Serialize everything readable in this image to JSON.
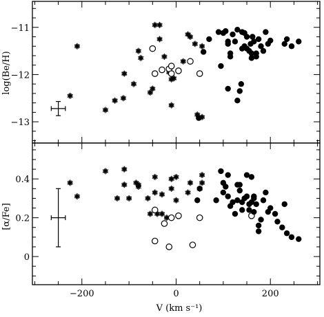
{
  "chart_data": [
    {
      "type": "scatter",
      "xlabel": "V (km s⁻¹)",
      "ylabel": "log(Be/H)",
      "xlim": [
        -305,
        305
      ],
      "ylim": [
        -13.45,
        -10.45
      ],
      "xticks": [
        -200,
        0,
        200
      ],
      "yticks": [
        -13,
        -12,
        -11
      ],
      "ytick_labels": [
        "−13",
        "−12",
        "−11"
      ],
      "series": [
        {
          "marker": "asterisk",
          "points": [
            [
              -210,
              -11.4
            ],
            [
              -225,
              -12.45
            ],
            [
              -150,
              -12.75
            ],
            [
              -130,
              -12.55
            ],
            [
              -112,
              -12.5
            ],
            [
              -110,
              -11.98
            ],
            [
              -90,
              -12.2
            ],
            [
              -80,
              -11.5
            ],
            [
              -75,
              -11.65
            ],
            [
              -55,
              -12.38
            ],
            [
              -50,
              -12.3
            ],
            [
              -45,
              -10.95
            ],
            [
              -35,
              -10.95
            ],
            [
              -35,
              -11.25
            ],
            [
              -25,
              -11.62
            ],
            [
              -15,
              -11.95
            ],
            [
              -10,
              -12.1
            ],
            [
              -10,
              -12.65
            ],
            [
              -5,
              -12.08
            ],
            [
              15,
              -11.72
            ],
            [
              25,
              -11.15
            ],
            [
              30,
              -11.2
            ],
            [
              40,
              -11.35
            ],
            [
              45,
              -12.85
            ],
            [
              55,
              -12.9
            ],
            [
              55,
              -11.4
            ]
          ]
        },
        {
          "marker": "open-circle",
          "points": [
            [
              -50,
              -11.45
            ],
            [
              -45,
              -11.98
            ],
            [
              -30,
              -11.9
            ],
            [
              -15,
              -11.88
            ],
            [
              -10,
              -11.82
            ],
            [
              -10,
              -11.98
            ],
            [
              5,
              -11.92
            ],
            [
              30,
              -11.72
            ],
            [
              50,
              -11.98
            ]
          ]
        },
        {
          "marker": "filled-circle",
          "points": [
            [
              48,
              -12.92
            ],
            [
              58,
              -11.52
            ],
            [
              70,
              -11.25
            ],
            [
              90,
              -11.1
            ],
            [
              95,
              -11.82
            ],
            [
              100,
              -11.12
            ],
            [
              105,
              -11.08
            ],
            [
              110,
              -11.3
            ],
            [
              110,
              -11.35
            ],
            [
              110,
              -12.3
            ],
            [
              115,
              -11.55
            ],
            [
              115,
              -11.62
            ],
            [
              120,
              -11.15
            ],
            [
              125,
              -11.3
            ],
            [
              130,
              -12.55
            ],
            [
              130,
              -11.05
            ],
            [
              135,
              -12.35
            ],
            [
              138,
              -12.2
            ],
            [
              140,
              -11.45
            ],
            [
              140,
              -11.1
            ],
            [
              145,
              -11.12
            ],
            [
              145,
              -11.4
            ],
            [
              150,
              -11.2
            ],
            [
              150,
              -11.45
            ],
            [
              155,
              -11.5
            ],
            [
              158,
              -11.35
            ],
            [
              160,
              -11.55
            ],
            [
              160,
              -11.65
            ],
            [
              162,
              -11.2
            ],
            [
              165,
              -11.3
            ],
            [
              170,
              -11.55
            ],
            [
              170,
              -11.62
            ],
            [
              175,
              -11.25
            ],
            [
              180,
              -11.4
            ],
            [
              185,
              -11.5
            ],
            [
              190,
              -11.1
            ],
            [
              195,
              -11.35
            ],
            [
              200,
              -11.28
            ],
            [
              230,
              -11.35
            ],
            [
              235,
              -11.25
            ],
            [
              245,
              -11.4
            ],
            [
              260,
              -11.3
            ]
          ]
        }
      ],
      "error_bar": {
        "x": -250,
        "y": -12.72,
        "xerr": 15,
        "yerr": 0.15
      }
    },
    {
      "type": "scatter",
      "xlabel": "V (km s⁻¹)",
      "ylabel": "[α/Fe]",
      "xlim": [
        -305,
        305
      ],
      "ylim": [
        -0.145,
        0.585
      ],
      "xticks": [
        -200,
        0,
        200
      ],
      "xtick_labels": [
        "−200",
        "0",
        "200"
      ],
      "yticks": [
        0,
        0.2,
        0.4
      ],
      "ytick_labels": [
        "0",
        "0.2",
        "0.4"
      ],
      "series": [
        {
          "marker": "asterisk",
          "points": [
            [
              -225,
              0.38
            ],
            [
              -210,
              0.31
            ],
            [
              -150,
              0.44
            ],
            [
              -125,
              0.3
            ],
            [
              -110,
              0.37
            ],
            [
              -110,
              0.45
            ],
            [
              -100,
              0.3
            ],
            [
              -85,
              0.38
            ],
            [
              -80,
              0.37
            ],
            [
              -80,
              0.36
            ],
            [
              -60,
              0.3
            ],
            [
              -55,
              0.22
            ],
            [
              -45,
              0.41
            ],
            [
              -45,
              0.33
            ],
            [
              -40,
              0.22
            ],
            [
              -30,
              0.22
            ],
            [
              -30,
              0.32
            ],
            [
              -20,
              0.2
            ],
            [
              -10,
              0.4
            ],
            [
              -10,
              0.35
            ],
            [
              0,
              0.41
            ],
            [
              0,
              0.29
            ],
            [
              25,
              0.33
            ],
            [
              30,
              0.38
            ],
            [
              50,
              0.35
            ],
            [
              55,
              0.42
            ],
            [
              55,
              0.38
            ]
          ]
        },
        {
          "marker": "open-circle",
          "points": [
            [
              -45,
              0.24
            ],
            [
              -45,
              0.08
            ],
            [
              -25,
              0.17
            ],
            [
              -15,
              0.05
            ],
            [
              -10,
              0.2
            ],
            [
              5,
              0.21
            ],
            [
              35,
              0.06
            ],
            [
              50,
              0.2
            ],
            [
              160,
              0.21
            ]
          ]
        },
        {
          "marker": "filled-circle",
          "points": [
            [
              45,
              0.29
            ],
            [
              50,
              0.35
            ],
            [
              85,
              0.29
            ],
            [
              95,
              0.44
            ],
            [
              100,
              0.38
            ],
            [
              100,
              0.33
            ],
            [
              105,
              0.36
            ],
            [
              110,
              0.42
            ],
            [
              110,
              0.31
            ],
            [
              115,
              0.26
            ],
            [
              120,
              0.28
            ],
            [
              125,
              0.22
            ],
            [
              130,
              0.37
            ],
            [
              130,
              0.29
            ],
            [
              135,
              0.37
            ],
            [
              135,
              0.34
            ],
            [
              140,
              0.28
            ],
            [
              140,
              0.24
            ],
            [
              145,
              0.3
            ],
            [
              150,
              0.31
            ],
            [
              150,
              0.42
            ],
            [
              155,
              0.27
            ],
            [
              155,
              0.24
            ],
            [
              160,
              0.28
            ],
            [
              160,
              0.41
            ],
            [
              165,
              0.3
            ],
            [
              165,
              0.31
            ],
            [
              165,
              0.23
            ],
            [
              170,
              0.27
            ],
            [
              175,
              0.16
            ],
            [
              175,
              0.13
            ],
            [
              180,
              0.19
            ],
            [
              185,
              0.29
            ],
            [
              190,
              0.33
            ],
            [
              195,
              0.23
            ],
            [
              200,
              0.25
            ],
            [
              210,
              0.22
            ],
            [
              215,
              0.18
            ],
            [
              225,
              0.15
            ],
            [
              230,
              0.27
            ],
            [
              235,
              0.12
            ],
            [
              245,
              0.1
            ],
            [
              260,
              0.09
            ]
          ]
        }
      ],
      "error_bar": {
        "x": -250,
        "y": 0.2,
        "xerr": 15,
        "yerr": 0.15
      }
    }
  ]
}
